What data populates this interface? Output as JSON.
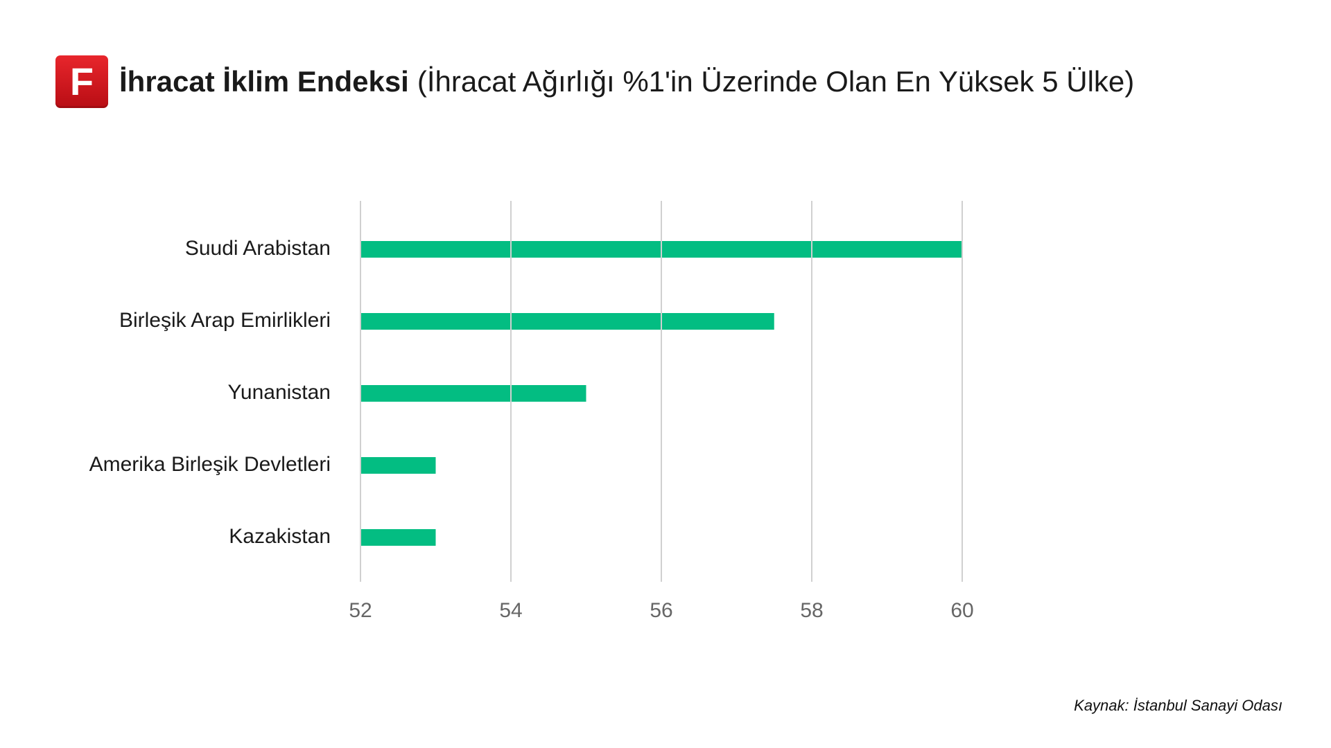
{
  "header": {
    "logo_letter": "F",
    "title": "İhracat İklim Endeksi",
    "subtitle": "(İhracat Ağırlığı %1'in Üzerinde Olan En Yüksek 5 Ülke)"
  },
  "chart_data": {
    "type": "bar",
    "orientation": "horizontal",
    "title": "İhracat İklim Endeksi",
    "subtitle": "(İhracat Ağırlığı %1'in Üzerinde Olan En Yüksek 5 Ülke)",
    "categories": [
      "Suudi Arabistan",
      "Birleşik Arap Emirlikleri",
      "Yunanistan",
      "Amerika Birleşik Devletleri",
      "Kazakistan"
    ],
    "values": [
      60.0,
      57.5,
      55.0,
      53.0,
      53.0
    ],
    "xlim": [
      52,
      60
    ],
    "xticks": [
      "52",
      "54",
      "56",
      "58",
      "60"
    ],
    "grid": true,
    "bar_color": "#03bd82",
    "grid_color": "#d0d0d0"
  },
  "footer": {
    "source": "Kaynak: İstanbul Sanayi Odası"
  }
}
